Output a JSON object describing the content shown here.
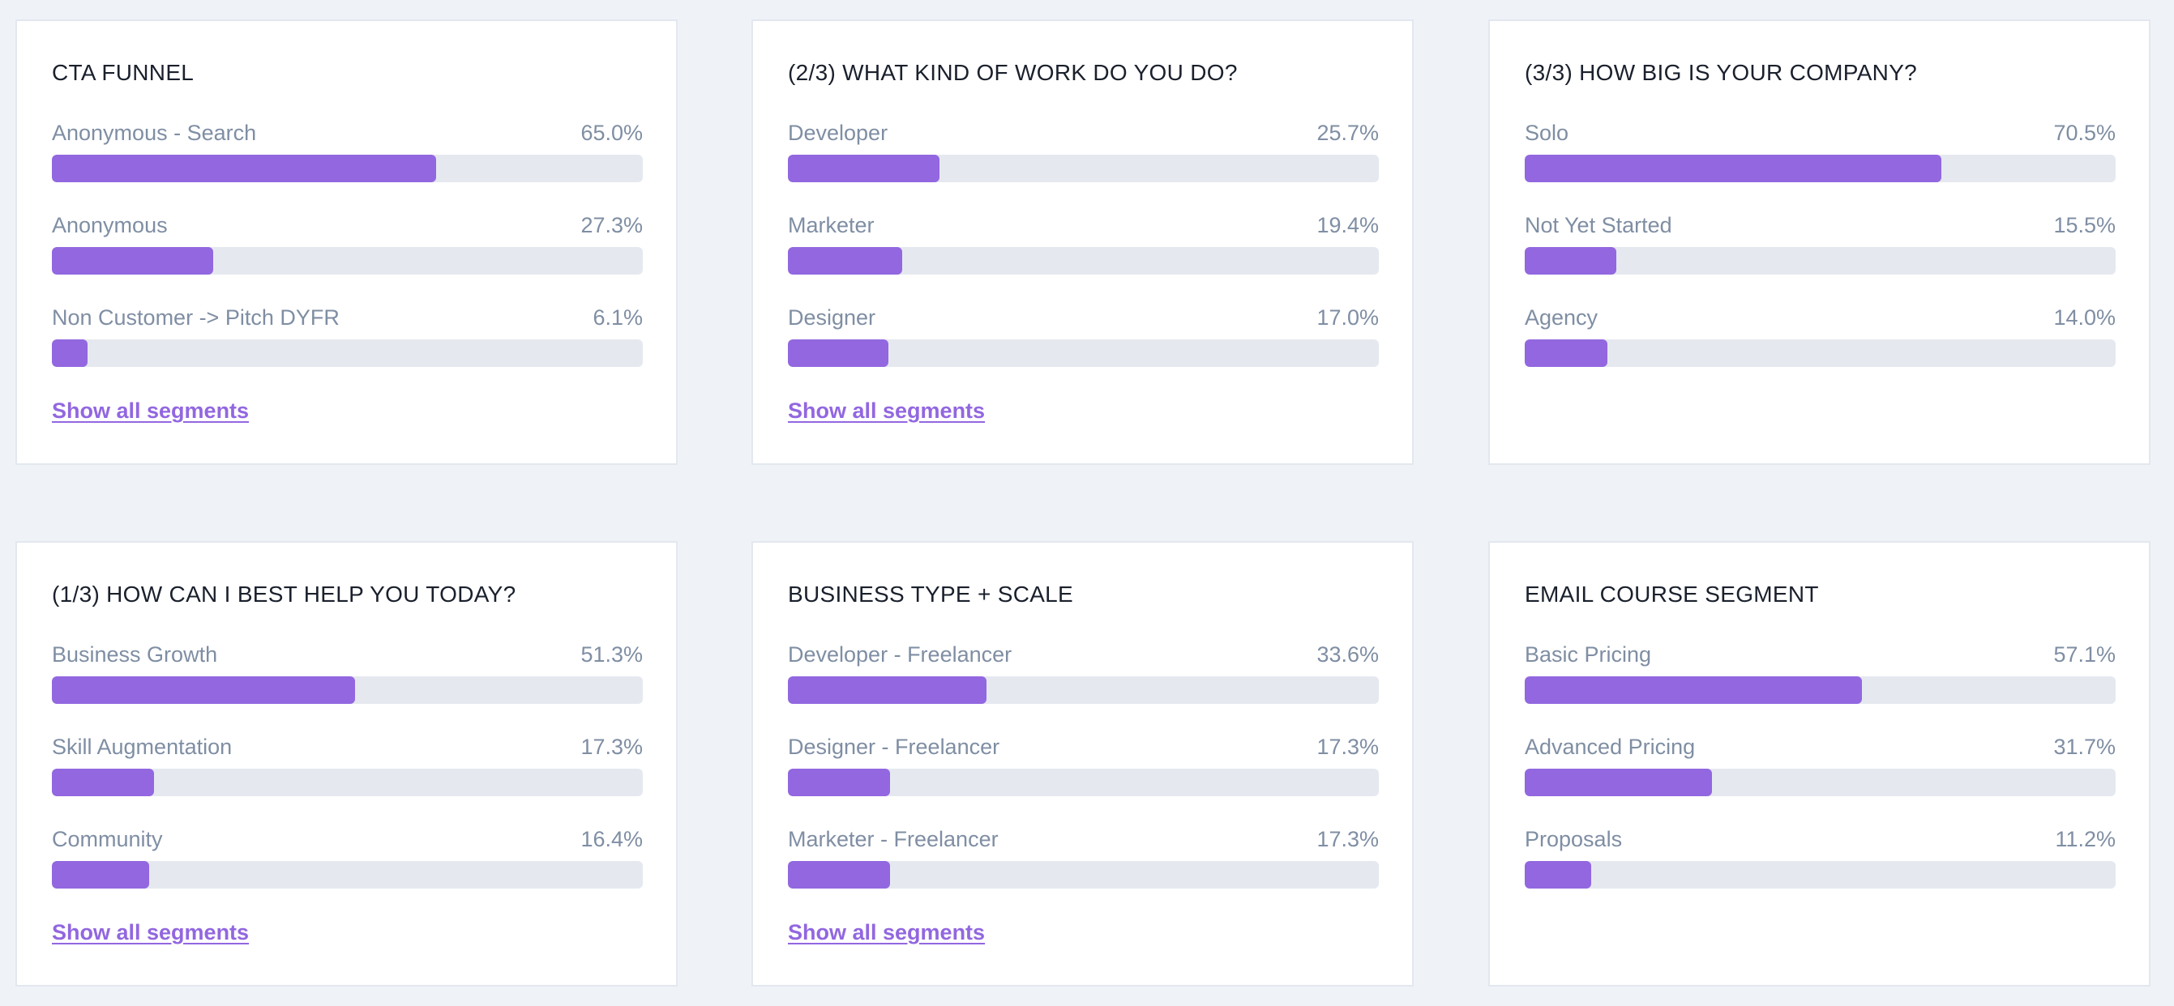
{
  "accent_color": "#9267e0",
  "track_color": "#e5e9ef",
  "cards": [
    {
      "title": "CTA FUNNEL",
      "segments": [
        {
          "label": "Anonymous - Search",
          "pct_text": "65.0%",
          "value": 65.0
        },
        {
          "label": "Anonymous",
          "pct_text": "27.3%",
          "value": 27.3
        },
        {
          "label": "Non Customer -> Pitch DYFR",
          "pct_text": "6.1%",
          "value": 6.1
        }
      ],
      "link": "Show all segments"
    },
    {
      "title": "(2/3) WHAT KIND OF WORK DO YOU DO?",
      "segments": [
        {
          "label": "Developer",
          "pct_text": "25.7%",
          "value": 25.7
        },
        {
          "label": "Marketer",
          "pct_text": "19.4%",
          "value": 19.4
        },
        {
          "label": "Designer",
          "pct_text": "17.0%",
          "value": 17.0
        }
      ],
      "link": "Show all segments"
    },
    {
      "title": "(3/3) HOW BIG IS YOUR COMPANY?",
      "segments": [
        {
          "label": "Solo",
          "pct_text": "70.5%",
          "value": 70.5
        },
        {
          "label": "Not Yet Started",
          "pct_text": "15.5%",
          "value": 15.5
        },
        {
          "label": "Agency",
          "pct_text": "14.0%",
          "value": 14.0
        }
      ],
      "link": ""
    },
    {
      "title": "(1/3) HOW CAN I BEST HELP YOU TODAY?",
      "segments": [
        {
          "label": "Business Growth",
          "pct_text": "51.3%",
          "value": 51.3
        },
        {
          "label": "Skill Augmentation",
          "pct_text": "17.3%",
          "value": 17.3
        },
        {
          "label": "Community",
          "pct_text": "16.4%",
          "value": 16.4
        }
      ],
      "link": "Show all segments"
    },
    {
      "title": "BUSINESS TYPE + SCALE",
      "segments": [
        {
          "label": "Developer - Freelancer",
          "pct_text": "33.6%",
          "value": 33.6
        },
        {
          "label": "Designer - Freelancer",
          "pct_text": "17.3%",
          "value": 17.3
        },
        {
          "label": "Marketer - Freelancer",
          "pct_text": "17.3%",
          "value": 17.3
        }
      ],
      "link": "Show all segments"
    },
    {
      "title": "EMAIL COURSE SEGMENT",
      "segments": [
        {
          "label": "Basic Pricing",
          "pct_text": "57.1%",
          "value": 57.1
        },
        {
          "label": "Advanced Pricing",
          "pct_text": "31.7%",
          "value": 31.7
        },
        {
          "label": "Proposals",
          "pct_text": "11.2%",
          "value": 11.2
        }
      ],
      "link": ""
    }
  ]
}
